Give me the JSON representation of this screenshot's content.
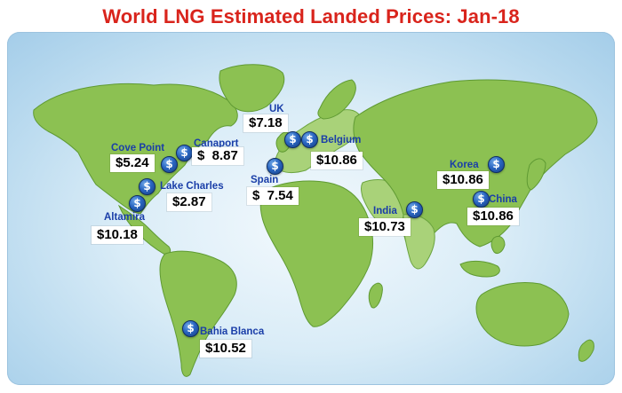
{
  "title": "World LNG Estimated Landed Prices: Jan-18",
  "currency_icon": "dollar-sign-icon",
  "colors": {
    "title": "#d9241c",
    "label": "#1a3ea8",
    "land": "#8cc152",
    "ocean": "#cfe6f5"
  },
  "locations": [
    {
      "key": "uk",
      "name": "UK",
      "price": "$7.18"
    },
    {
      "key": "belgium",
      "name": "Belgium",
      "price": "$10.86"
    },
    {
      "key": "spain",
      "name": "Spain",
      "price": "$  7.54"
    },
    {
      "key": "cove_point",
      "name": "Cove Point",
      "price": "$5.24"
    },
    {
      "key": "canaport",
      "name": "Canaport",
      "price": "$  8.87"
    },
    {
      "key": "lake_charles",
      "name": "Lake Charles",
      "price": "$2.87"
    },
    {
      "key": "altamira",
      "name": "Altamira",
      "price": "$10.18"
    },
    {
      "key": "bahia_blanca",
      "name": "Bahia Blanca",
      "price": "$10.52"
    },
    {
      "key": "india",
      "name": "India",
      "price": "$10.73"
    },
    {
      "key": "korea",
      "name": "Korea",
      "price": "$10.86"
    },
    {
      "key": "china",
      "name": "China",
      "price": "$10.86"
    }
  ]
}
